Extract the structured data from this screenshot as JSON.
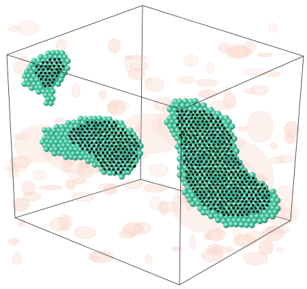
{
  "scene": {
    "background_color": "#ffffff",
    "box_edge_color": "#2b2b2b",
    "colors": {
      "density_fill": "#f7b9a3",
      "density_edge": "#f19a7e",
      "cluster_light": "#4fcfa8",
      "cluster_dark": "#0e8a6a",
      "atom": "#111111"
    },
    "clusters": [
      {
        "name": "upper-left-cluster",
        "has_atoms": true
      },
      {
        "name": "middle-left-cluster",
        "has_atoms": true
      },
      {
        "name": "right-cluster",
        "has_atoms": true
      }
    ]
  }
}
